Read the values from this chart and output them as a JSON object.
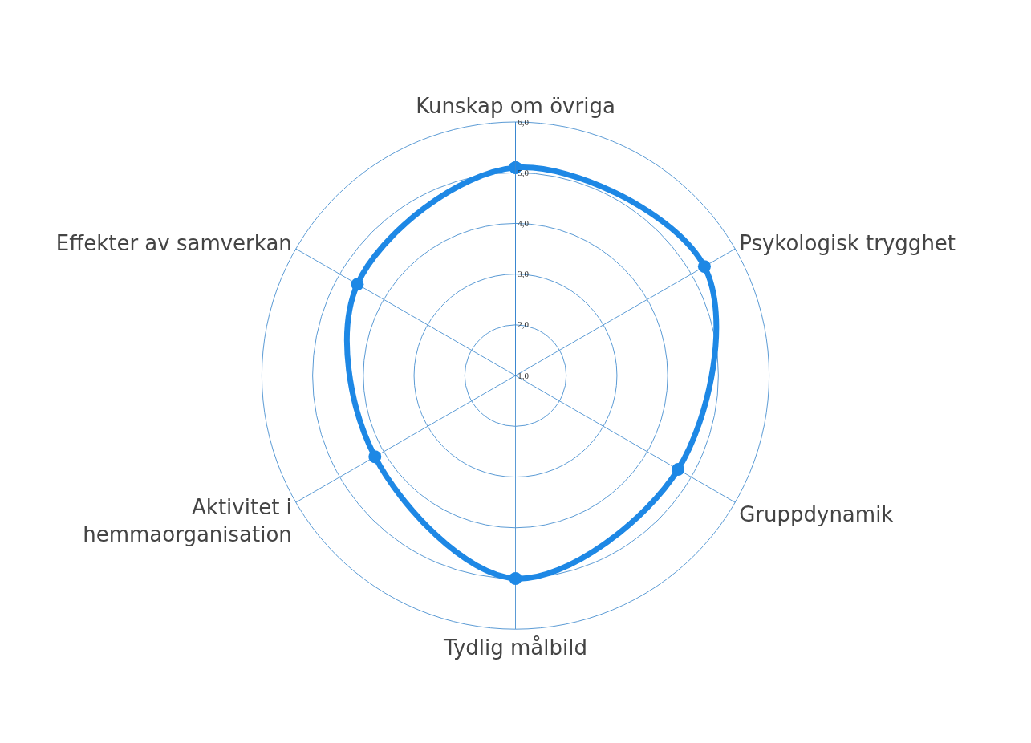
{
  "chart_data": {
    "type": "radar",
    "categories": [
      "Kunskap om övriga",
      "Psykologisk trygghet",
      "Gruppdynamik",
      "Tydlig målbild",
      "Aktivitet i\nhemmaorganisation",
      "Effekter av samverkan"
    ],
    "series": [
      {
        "color": "#1e88e5",
        "values": [
          5.1,
          5.3,
          4.7,
          5.0,
          4.2,
          4.6
        ]
      }
    ],
    "ylim": [
      1,
      6
    ],
    "yticks": [
      {
        "value": 1,
        "label": "1,0"
      },
      {
        "value": 2,
        "label": "2,0"
      },
      {
        "value": 3,
        "label": "3,0"
      },
      {
        "value": 4,
        "label": "4,0"
      },
      {
        "value": 5,
        "label": "5,0"
      },
      {
        "value": 6,
        "label": "6,0"
      }
    ],
    "grid": true,
    "marker": "circle",
    "line_style": "solid"
  }
}
